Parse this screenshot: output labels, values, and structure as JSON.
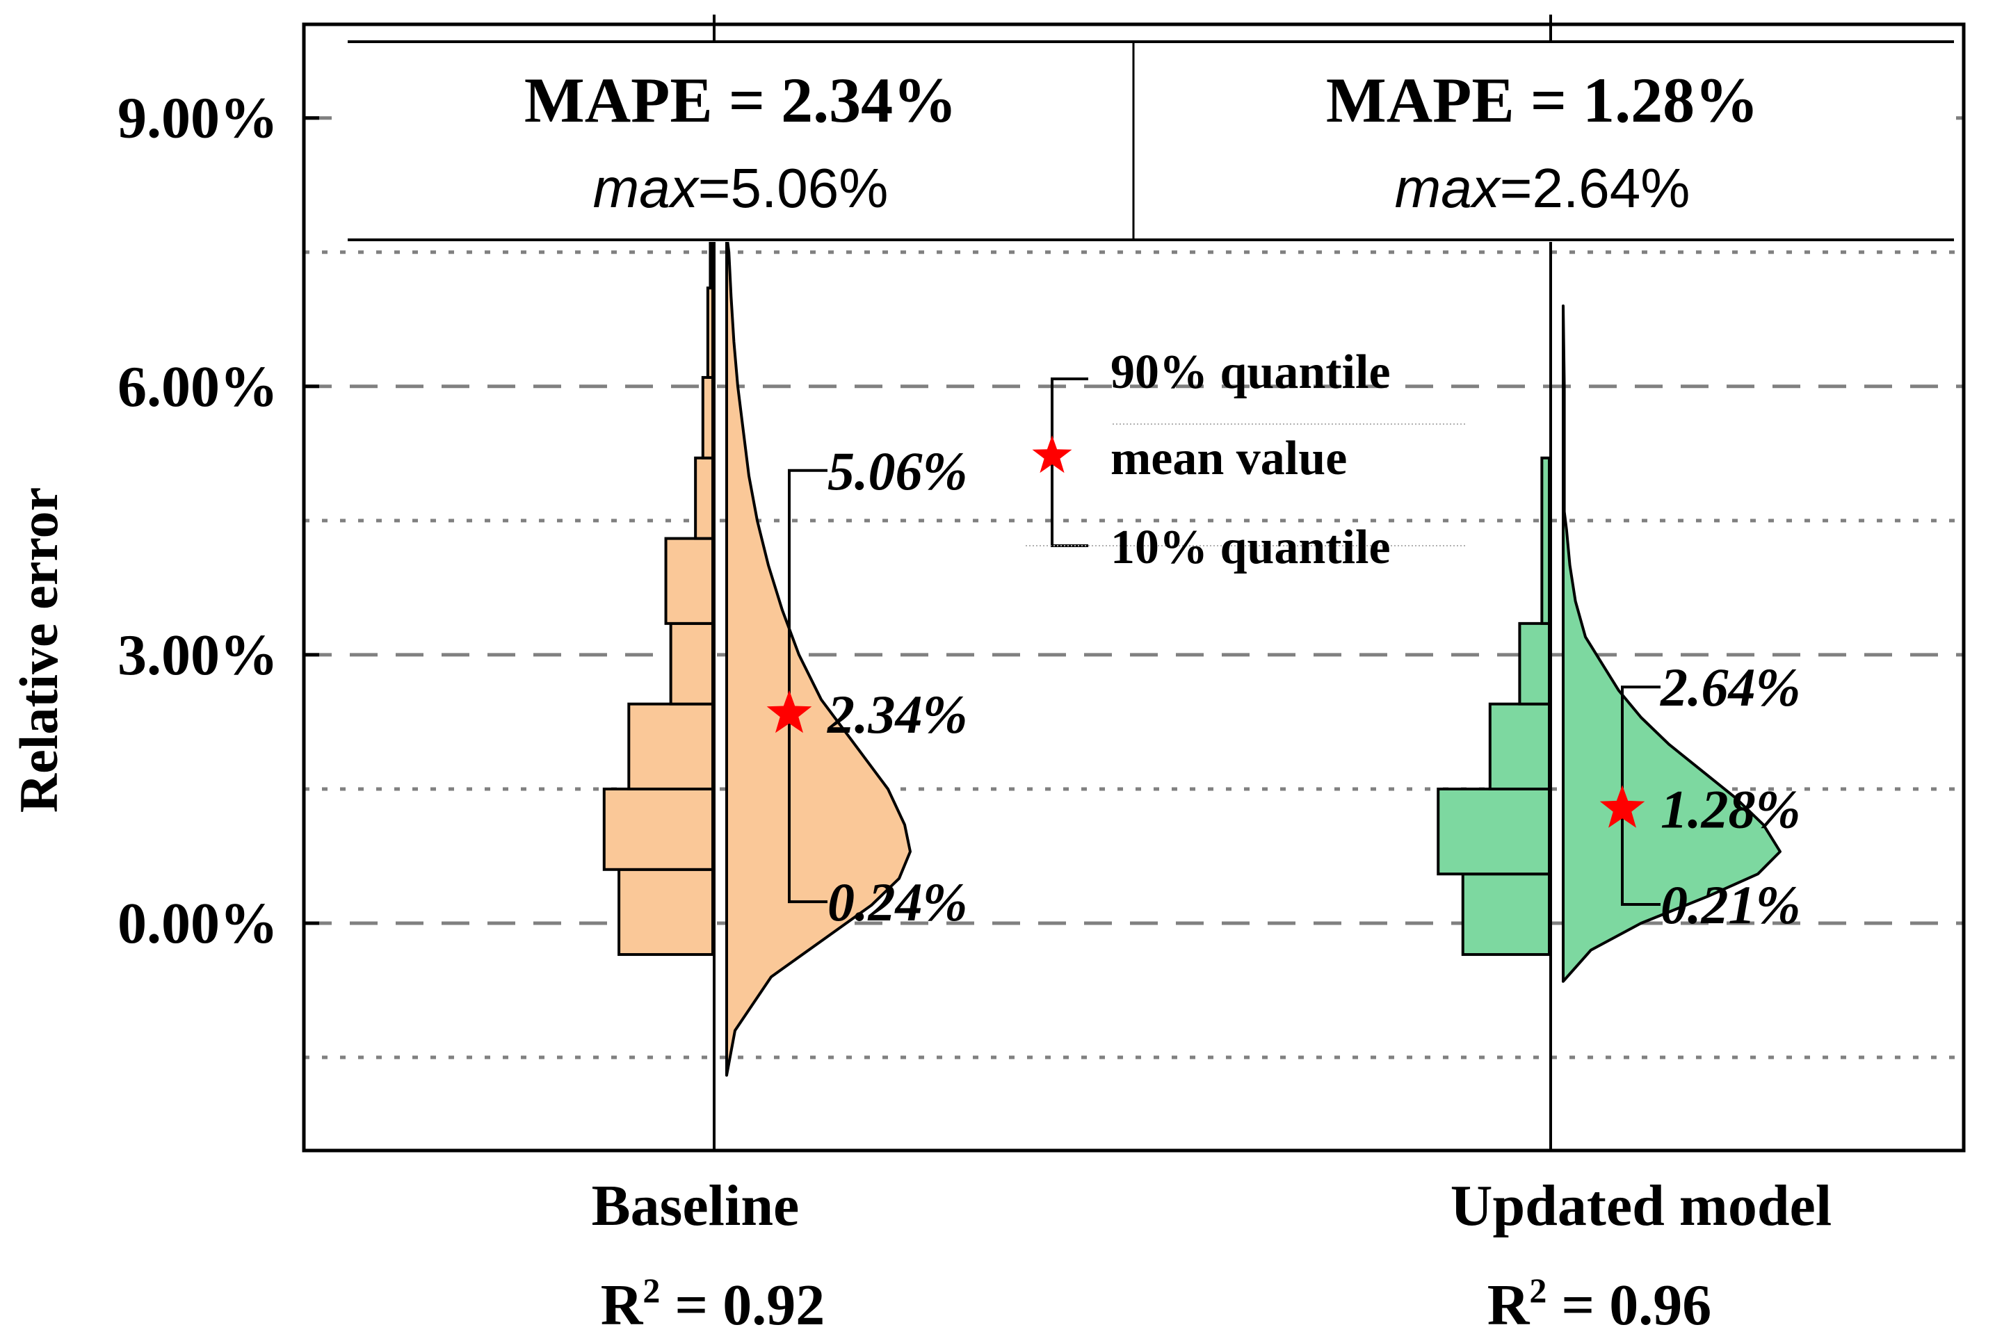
{
  "chart_data": {
    "type": "violin_histogram",
    "ylabel": "Relative error",
    "y_ticks": [
      "0.00%",
      "3.00%",
      "6.00%",
      "9.00%"
    ],
    "y_tick_values": [
      0,
      3,
      6,
      9
    ],
    "y_minor_gridlines": [
      -1.5,
      1.5,
      4.5,
      7.5
    ],
    "ylim": [
      -2.5,
      10
    ],
    "grid": "dashed horizontal",
    "series": [
      {
        "name": "Baseline",
        "r2_label": "R",
        "r2_sup": "2",
        "r2_value": " = 0.92",
        "mape_label": "MAPE = 2.34%",
        "max_prefix": "max",
        "max_value": "=5.06%",
        "color": "#FAC898",
        "q90": 5.06,
        "mean": 2.34,
        "q10": 0.24,
        "q90_label": "5.06%",
        "mean_label": "2.34%",
        "q10_label": "0.24%",
        "hist_bins": [
          -0.35,
          0.6,
          1.5,
          2.45,
          3.35,
          4.3,
          5.2,
          6.1,
          7.1,
          7.6
        ],
        "hist_widths": [
          1.9,
          2.2,
          1.7,
          0.85,
          0.95,
          0.35,
          0.2,
          0.1,
          0.05
        ],
        "kde_y": [
          -1.7,
          -1.2,
          -0.6,
          -0.2,
          0.2,
          0.5,
          0.8,
          1.1,
          1.5,
          2.0,
          2.5,
          3.0,
          3.5,
          4.0,
          4.5,
          5.0,
          5.5,
          6.0,
          6.5,
          7.0,
          7.5,
          7.7
        ],
        "kde_x": [
          0.0,
          0.15,
          0.8,
          1.7,
          2.6,
          3.1,
          3.3,
          3.2,
          2.9,
          2.3,
          1.7,
          1.3,
          1.0,
          0.75,
          0.55,
          0.4,
          0.3,
          0.2,
          0.13,
          0.08,
          0.04,
          0.0
        ]
      },
      {
        "name": "Updated model",
        "r2_label": "R",
        "r2_sup": "2",
        "r2_value": " = 0.96",
        "mape_label": "MAPE = 1.28%",
        "max_prefix": "max",
        "max_value": "=2.64%",
        "color": "#7DD8A0",
        "q90": 2.64,
        "mean": 1.28,
        "q10": 0.21,
        "q90_label": "2.64%",
        "mean_label": "1.28%",
        "q10_label": "0.21%",
        "hist_bins": [
          -0.35,
          0.55,
          1.5,
          2.45,
          3.35,
          5.2
        ],
        "hist_widths": [
          1.75,
          2.25,
          1.2,
          0.6,
          0.15
        ],
        "kde_y": [
          -0.65,
          -0.3,
          0.0,
          0.3,
          0.55,
          0.8,
          1.1,
          1.4,
          1.7,
          2.0,
          2.3,
          2.6,
          2.9,
          3.2,
          3.6,
          4.0,
          4.4,
          4.6,
          5.0,
          5.5,
          6.0,
          6.9
        ],
        "kde_x": [
          0.0,
          0.5,
          1.4,
          2.6,
          3.5,
          3.9,
          3.6,
          3.1,
          2.5,
          1.9,
          1.4,
          1.0,
          0.7,
          0.4,
          0.22,
          0.12,
          0.06,
          0.02,
          0.02,
          0.02,
          0.02,
          0.0
        ]
      }
    ],
    "legend": {
      "q90": "90% quantile",
      "mean": "mean value",
      "q10": "10% quantile"
    }
  },
  "colors": {
    "star": "#FF0000",
    "grid": "#808080",
    "axis": "#000000"
  }
}
